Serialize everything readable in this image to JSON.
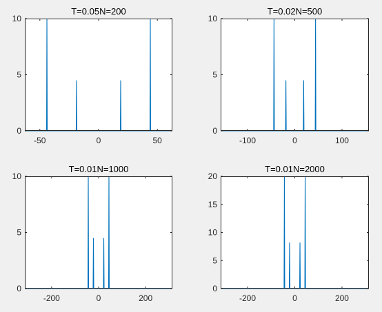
{
  "figure": {
    "background": "#f0f0f0",
    "axes_background": "#ffffff",
    "axis_color": "#262626",
    "line_color": "#0072bd"
  },
  "chart_data": [
    {
      "type": "line",
      "title": "T=0.05N=200",
      "xlabel": "",
      "ylabel": "",
      "xlim": [
        -62.8,
        62.8
      ],
      "ylim": [
        0,
        10
      ],
      "xticks": [
        -50,
        0,
        50
      ],
      "yticks": [
        0,
        5,
        10
      ],
      "grid": false,
      "peaks": [
        {
          "x": -44.0,
          "y": 10
        },
        {
          "x": -18.8,
          "y": 4.5
        },
        {
          "x": 18.8,
          "y": 4.5
        },
        {
          "x": 44.0,
          "y": 10
        }
      ]
    },
    {
      "type": "line",
      "title": "T=0.02N=500",
      "xlabel": "",
      "ylabel": "",
      "xlim": [
        -157,
        157
      ],
      "ylim": [
        0,
        10
      ],
      "xticks": [
        -100,
        0,
        100
      ],
      "yticks": [
        0,
        5,
        10
      ],
      "grid": false,
      "peaks": [
        {
          "x": -44.0,
          "y": 10
        },
        {
          "x": -18.8,
          "y": 4.5
        },
        {
          "x": 18.8,
          "y": 4.5
        },
        {
          "x": 44.0,
          "y": 10
        }
      ]
    },
    {
      "type": "line",
      "title": "T=0.01N=1000",
      "xlabel": "",
      "ylabel": "",
      "xlim": [
        -314,
        314
      ],
      "ylim": [
        0,
        10
      ],
      "xticks": [
        -200,
        0,
        200
      ],
      "yticks": [
        0,
        5,
        10
      ],
      "grid": false,
      "peaks": [
        {
          "x": -44.0,
          "y": 10
        },
        {
          "x": -22.0,
          "y": 4.5
        },
        {
          "x": 22.0,
          "y": 4.5
        },
        {
          "x": 44.0,
          "y": 10
        }
      ]
    },
    {
      "type": "line",
      "title": "T=0.01N=2000",
      "xlabel": "",
      "ylabel": "",
      "xlim": [
        -314,
        314
      ],
      "ylim": [
        0,
        20
      ],
      "xticks": [
        -200,
        0,
        200
      ],
      "yticks": [
        0,
        5,
        10,
        15,
        20
      ],
      "grid": false,
      "peaks": [
        {
          "x": -44.0,
          "y": 20
        },
        {
          "x": -22.0,
          "y": 8.2
        },
        {
          "x": 22.0,
          "y": 8.2
        },
        {
          "x": 44.0,
          "y": 20
        }
      ]
    }
  ]
}
